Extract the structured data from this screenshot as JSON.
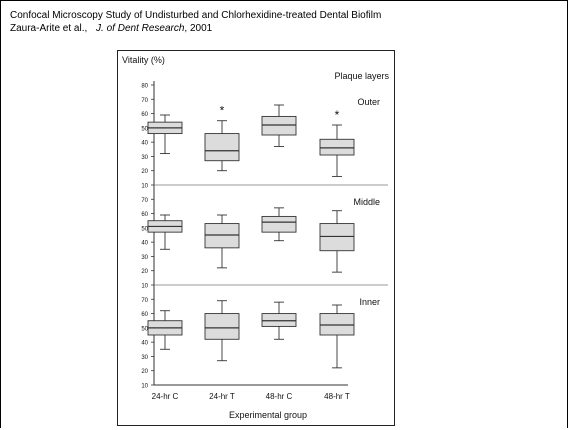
{
  "header": {
    "title": "Confocal Microscopy Study of Undisturbed and Chlorhexidine-treated Dental Biofilm",
    "citation_authors": "Zaura-Arite et al.,",
    "citation_journal": "J. of Dent Research",
    "citation_year": ", 2001"
  },
  "chart_data": {
    "type": "box",
    "ylabel": "Vitality (%)",
    "xlabel": "Experimental group",
    "legend_title": "Plaque layers",
    "categories": [
      "24-hr C",
      "24-hr T",
      "48-hr C",
      "48-hr T"
    ],
    "panels": [
      {
        "name": "Outer",
        "ylim": [
          10,
          80
        ],
        "yticks": [
          10,
          20,
          30,
          40,
          50,
          60,
          70,
          80
        ],
        "boxes": [
          {
            "min": 32,
            "q1": 46,
            "median": 50,
            "q3": 54,
            "max": 59
          },
          {
            "min": 20,
            "q1": 27,
            "median": 34,
            "q3": 46,
            "max": 55
          },
          {
            "min": 37,
            "q1": 45,
            "median": 52,
            "q3": 58,
            "max": 66
          },
          {
            "min": 16,
            "q1": 31,
            "median": 36,
            "q3": 42,
            "max": 52
          }
        ],
        "significant": [
          false,
          true,
          false,
          true
        ],
        "significance_mark": "*"
      },
      {
        "name": "Middle",
        "ylim": [
          10,
          80
        ],
        "yticks": [
          10,
          20,
          30,
          40,
          50,
          60,
          70
        ],
        "boxes": [
          {
            "min": 35,
            "q1": 47,
            "median": 51,
            "q3": 55,
            "max": 59
          },
          {
            "min": 22,
            "q1": 36,
            "median": 45,
            "q3": 53,
            "max": 59
          },
          {
            "min": 41,
            "q1": 47,
            "median": 54,
            "q3": 58,
            "max": 64
          },
          {
            "min": 19,
            "q1": 34,
            "median": 44,
            "q3": 53,
            "max": 62
          }
        ],
        "significant": [
          false,
          false,
          false,
          false
        ]
      },
      {
        "name": "Inner",
        "ylim": [
          10,
          80
        ],
        "yticks": [
          10,
          20,
          30,
          40,
          50,
          60,
          70
        ],
        "boxes": [
          {
            "min": 35,
            "q1": 45,
            "median": 50,
            "q3": 55,
            "max": 62
          },
          {
            "min": 27,
            "q1": 42,
            "median": 50,
            "q3": 60,
            "max": 69
          },
          {
            "min": 42,
            "q1": 51,
            "median": 55,
            "q3": 60,
            "max": 68
          },
          {
            "min": 22,
            "q1": 45,
            "median": 52,
            "q3": 60,
            "max": 66
          }
        ],
        "significant": [
          false,
          false,
          false,
          false
        ]
      }
    ],
    "colors": {
      "box_fill": "#dcdcdc",
      "stroke": "#333333",
      "divider": "#777777"
    }
  }
}
